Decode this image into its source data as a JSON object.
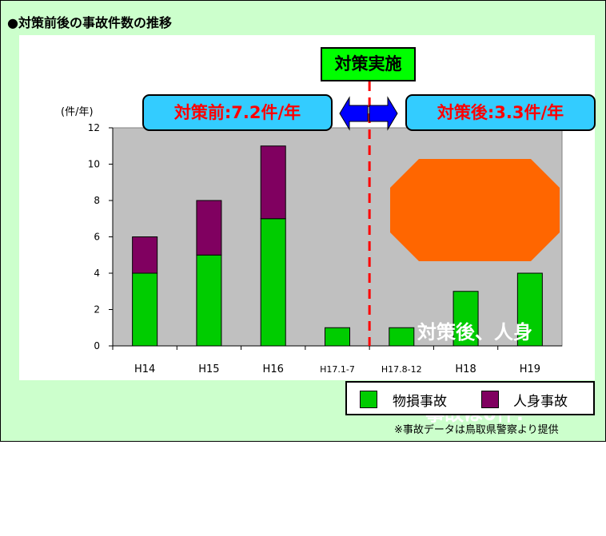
{
  "heading": "●対策前後の事故件数の推移",
  "annotations": {
    "before": "対策前:7.2件/年",
    "implementation": "対策実施",
    "after": "対策後:3.3件/年",
    "callout_line1": "対策後、人身",
    "callout_line2": "事故は0件!"
  },
  "source_note": "※事故データは鳥取県警察より提供",
  "colors": {
    "frame_bg": "#ccffcc",
    "plot_bg": "#c0c0c0",
    "property_damage": "#00cc00",
    "injury": "#800060",
    "annotation_box": "#33ccff",
    "annotation_text": "#ff0000",
    "implementation_box": "#00ff00",
    "callout": "#ff6600",
    "divider": "#ff0000",
    "arrow": "#0000ff"
  },
  "chart_data": {
    "type": "bar",
    "stacked": true,
    "unit_label": "(件/年)",
    "categories": [
      "H14",
      "H15",
      "H16",
      "H17.1-7",
      "H17.8-12",
      "H18",
      "H19"
    ],
    "series": [
      {
        "name": "物損事故",
        "values": [
          4,
          5,
          7,
          1,
          1,
          3,
          4
        ]
      },
      {
        "name": "人身事故",
        "values": [
          2,
          3,
          4,
          0,
          0,
          0,
          0
        ]
      }
    ],
    "ylim": [
      0,
      12
    ],
    "yticks": [
      0,
      2,
      4,
      6,
      8,
      10,
      12
    ],
    "grid": false,
    "legend_position": "bottom-right",
    "divider_between": [
      "H17.1-7",
      "H17.8-12"
    ]
  }
}
